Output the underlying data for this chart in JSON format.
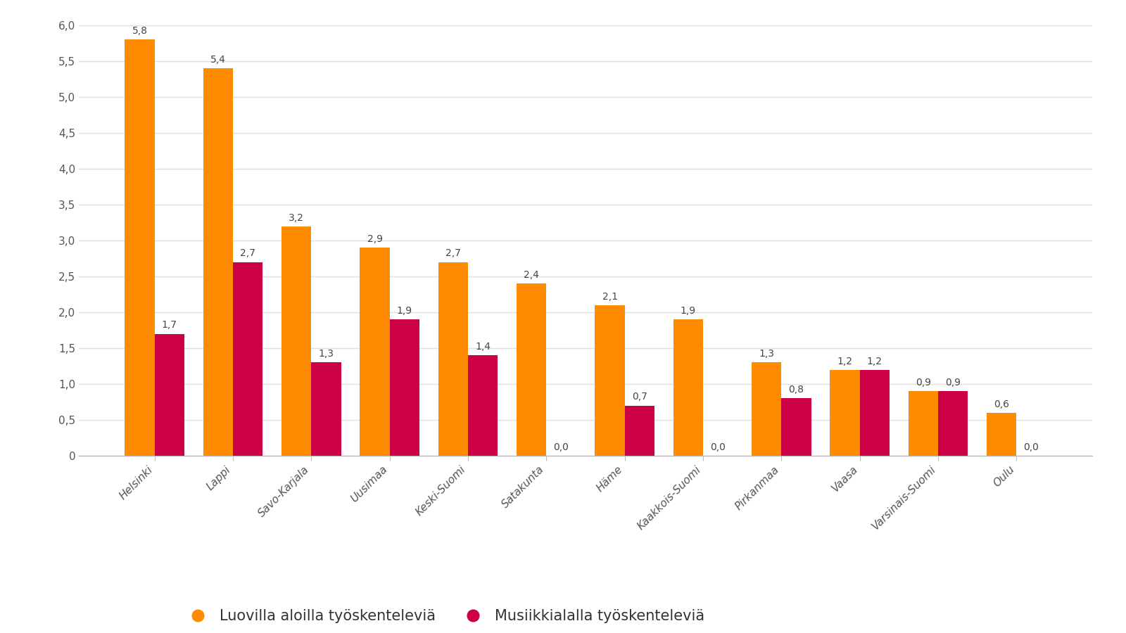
{
  "categories": [
    "Helsinki",
    "Lappi",
    "Savo-Karjala",
    "Uusimaa",
    "Keski-Suomi",
    "Satakunta",
    "Häme",
    "Kaakkois-Suomi",
    "Pirkanmaa",
    "Vaasa",
    "Varsinais-Suomi",
    "Oulu"
  ],
  "orange_values": [
    5.8,
    5.4,
    3.2,
    2.9,
    2.7,
    2.4,
    2.1,
    1.9,
    1.3,
    1.2,
    0.9,
    0.6
  ],
  "red_values": [
    1.7,
    2.7,
    1.3,
    1.9,
    1.4,
    0.0,
    0.7,
    0.0,
    0.8,
    1.2,
    0.9,
    0.0
  ],
  "orange_color": "#FF8C00",
  "red_color": "#CC0044",
  "background_color": "#FFFFFF",
  "ylim": [
    0,
    6.0
  ],
  "yticks": [
    0,
    0.5,
    1.0,
    1.5,
    2.0,
    2.5,
    3.0,
    3.5,
    4.0,
    4.5,
    5.0,
    5.5,
    6.0
  ],
  "ytick_labels": [
    "0",
    "0,5",
    "1,0",
    "1,5",
    "2,0",
    "2,5",
    "3,0",
    "3,5",
    "4,0",
    "4,5",
    "5,0",
    "5,5",
    "6,0"
  ],
  "legend_orange": "Luovilla aloilla työskenteleviä",
  "legend_red": "Musiikkialalla työskenteleviä",
  "bar_width": 0.38,
  "grid_color": "#E0E0E0",
  "label_fontsize": 10,
  "tick_fontsize": 11,
  "legend_fontsize": 15,
  "axis_label_color": "#555555",
  "value_label_color": "#444444"
}
